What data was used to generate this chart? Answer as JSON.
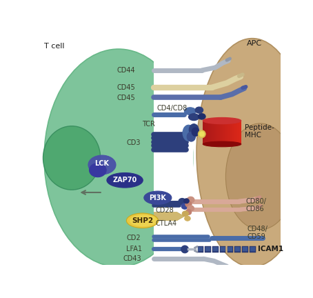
{
  "bg_color": "#ffffff",
  "tcell_color": "#7ec49b",
  "nucleus_color": "#4fa870",
  "apc_color": "#c9aa7c",
  "apc_nucleus_color": "#b8956a",
  "labels": {
    "tcell": "T cell",
    "apc": "APC",
    "cd44": "CD44",
    "cd45_1": "CD45",
    "cd45_2": "CD45",
    "cd4cd8": "CD4/CD8",
    "tcr": "TCR",
    "cd3": "CD3",
    "lck": "LCK",
    "zap70": "ZAP70",
    "pi3k": "PI3K",
    "shp2": "SHP2",
    "cd28": "CD28",
    "ctla4": "CTLA4",
    "cd2": "CD2",
    "lfa1": "LFA1",
    "cd43": "CD43",
    "peptide_mhc": "Peptide-\nMHC",
    "cd80_86": "CD80/\nCD86",
    "cd48_59": "CD48/\nCD59",
    "icam1": "ICAM1"
  },
  "colors": {
    "blue_dark": "#2d3f7c",
    "blue_mid": "#4a6ca8",
    "blue_light": "#7a9ac8",
    "gray_light": "#b0b8c4",
    "gray_med": "#9098a8",
    "cream_cd45": "#ddd0a0",
    "blue_cd45": "#5a6eaa",
    "salmon": "#c89080",
    "salmon_light": "#d8a898",
    "red_mhc": "#aa1818",
    "red_light": "#cc3333",
    "gold": "#d8c050",
    "gold_light": "#ece060",
    "lck_blue": "#4a50a8",
    "zap70_blue": "#2a3088",
    "pi3k_blue": "#3a4898",
    "shp2_yellow": "#e8c840",
    "shp2_light": "#f0d858",
    "ctla4_cream": "#d0b870",
    "text_dark": "#3a3a2a",
    "arrow_color": "#607060"
  }
}
